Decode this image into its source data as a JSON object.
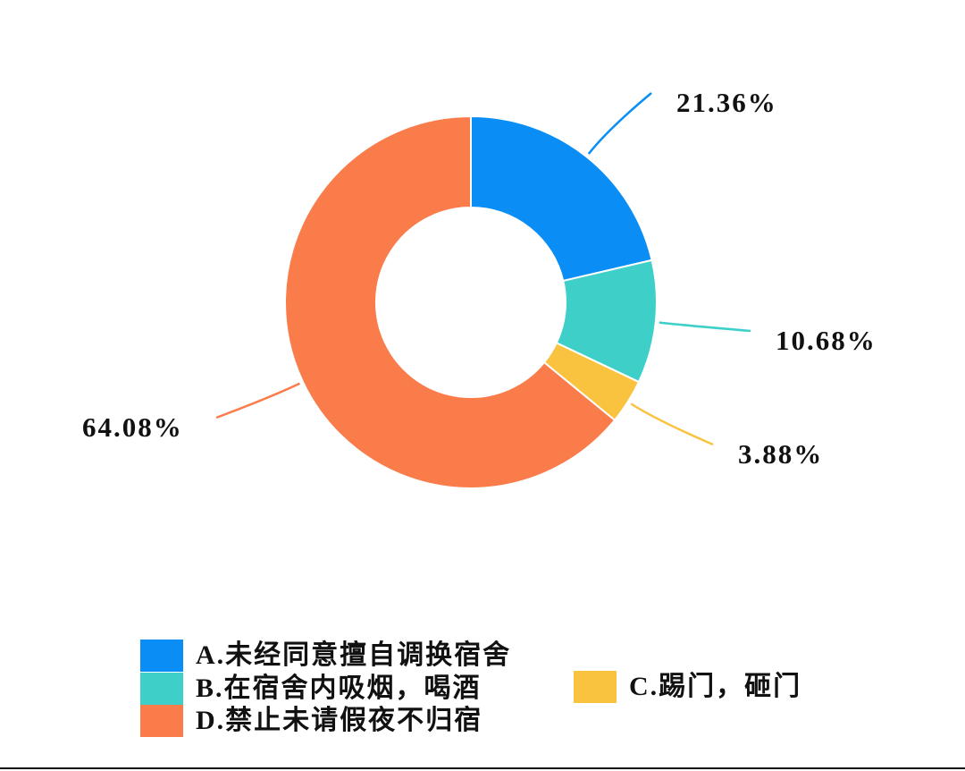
{
  "chart_data": {
    "type": "pie",
    "categories": [
      "A.未经同意擅自调换宿舍",
      "B.在宿舍内吸烟，喝酒",
      "C.踢门，砸门",
      "D.禁止未请假夜不归宿"
    ],
    "values": [
      21.36,
      10.68,
      3.88,
      64.08
    ],
    "value_labels": [
      "21.36%",
      "10.68%",
      "3.88%",
      "64.08%"
    ],
    "colors": [
      "#0a8ef5",
      "#3ecfc9",
      "#f9c33f",
      "#f97c4a"
    ]
  }
}
